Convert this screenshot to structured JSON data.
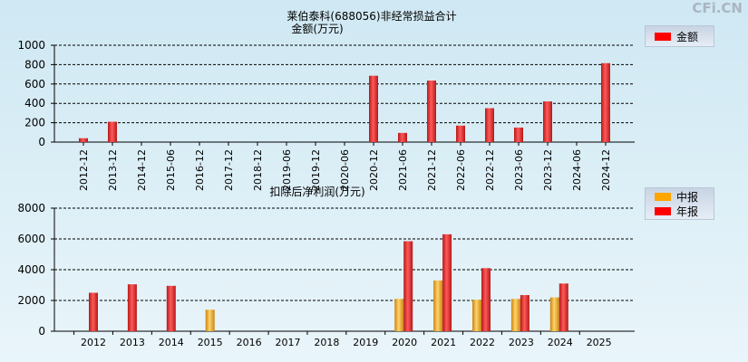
{
  "watermark": "CFi.CN",
  "colors": {
    "red": "#dd2222",
    "orange": "#f0a21f",
    "grid": "#000000"
  },
  "chart_data": [
    {
      "type": "bar",
      "title": "莱伯泰科(688056)非经常损益合计",
      "ylabel": "金额(万元)",
      "legend": [
        {
          "name": "金额",
          "color": "#ff0000"
        }
      ],
      "ylim": [
        0,
        1000
      ],
      "yticks": [
        0,
        200,
        400,
        600,
        800,
        1000
      ],
      "categories": [
        "2012-12",
        "2013-12",
        "2014-12",
        "2015-06",
        "2016-12",
        "2017-12",
        "2018-12",
        "2019-06",
        "2019-12",
        "2020-06",
        "2020-12",
        "2021-06",
        "2021-12",
        "2022-06",
        "2022-12",
        "2023-06",
        "2023-12",
        "2024-06",
        "2024-12"
      ],
      "values": [
        40,
        210,
        0,
        0,
        0,
        0,
        0,
        0,
        0,
        0,
        685,
        95,
        635,
        170,
        350,
        150,
        420,
        0,
        815
      ]
    },
    {
      "type": "bar",
      "title": "扣除后净利润(万元)",
      "legend": [
        {
          "name": "中报",
          "color": "#ffa500"
        },
        {
          "name": "年报",
          "color": "#ff0000"
        }
      ],
      "ylim": [
        0,
        8000
      ],
      "yticks": [
        0,
        2000,
        4000,
        6000,
        8000
      ],
      "categories": [
        "2012",
        "2013",
        "2014",
        "2015",
        "2016",
        "2017",
        "2018",
        "2019",
        "2020",
        "2021",
        "2022",
        "2023",
        "2024",
        "2025"
      ],
      "series": [
        {
          "name": "中报",
          "values": [
            null,
            null,
            null,
            1400,
            null,
            null,
            null,
            null,
            2100,
            3300,
            2050,
            2100,
            2200,
            null
          ]
        },
        {
          "name": "年报",
          "values": [
            2500,
            3050,
            2950,
            null,
            null,
            null,
            null,
            null,
            5850,
            6300,
            4100,
            2350,
            3100,
            null
          ]
        }
      ]
    }
  ]
}
